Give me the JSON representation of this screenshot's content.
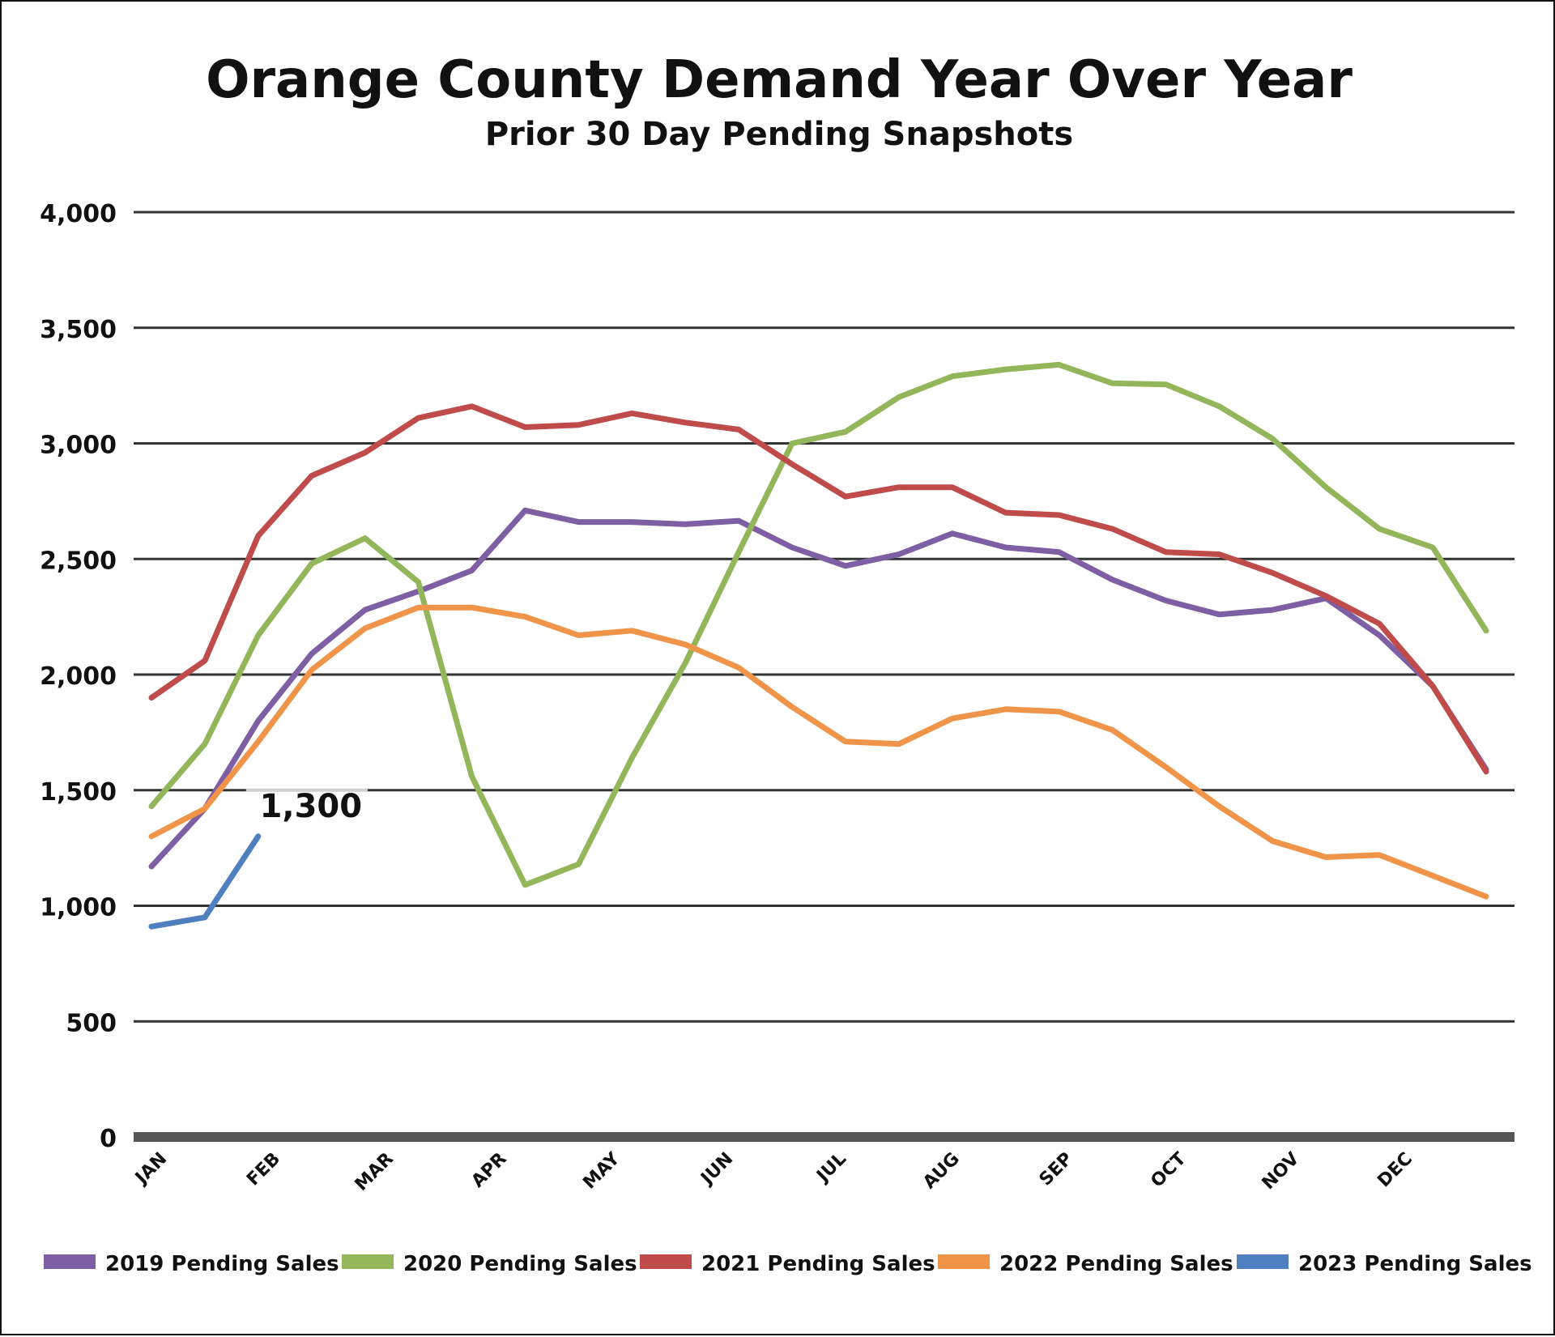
{
  "chart_data": {
    "type": "line",
    "title": "Orange County Demand Year Over Year",
    "subtitle": "Prior 30 Day Pending Snapshots",
    "xlabel": "",
    "ylabel": "",
    "ylim": [
      0,
      4000
    ],
    "yticks": [
      0,
      500,
      1000,
      1500,
      2000,
      2500,
      3000,
      3500,
      4000
    ],
    "ytick_labels": [
      "0",
      "500",
      "1,000",
      "1,500",
      "2,000",
      "2,500",
      "3,000",
      "3,500",
      "4,000"
    ],
    "month_labels": [
      "JAN",
      "FEB",
      "MAR",
      "APR",
      "MAY",
      "JUN",
      "JUL",
      "AUG",
      "SEP",
      "OCT",
      "NOV",
      "DEC"
    ],
    "points_per_year": 26,
    "grid": true,
    "legend_position": "bottom",
    "series": [
      {
        "name": "2019 Pending Sales",
        "color": "#7e5fa3",
        "values": [
          1170,
          1420,
          1800,
          2090,
          2280,
          2360,
          2450,
          2710,
          2660,
          2660,
          2650,
          2665,
          2550,
          2470,
          2520,
          2610,
          2550,
          2530,
          2410,
          2320,
          2260,
          2280,
          2330,
          2170,
          1950,
          1590
        ]
      },
      {
        "name": "2020 Pending Sales",
        "color": "#93b65a",
        "values": [
          1430,
          1700,
          2170,
          2480,
          2590,
          2400,
          1560,
          1090,
          1180,
          1640,
          2050,
          2530,
          3000,
          3050,
          3200,
          3290,
          3320,
          3340,
          3260,
          3255,
          3160,
          3020,
          2810,
          2630,
          2550,
          2190
        ]
      },
      {
        "name": "2021 Pending Sales",
        "color": "#c04b4b",
        "values": [
          1900,
          2060,
          2600,
          2860,
          2960,
          3110,
          3160,
          3070,
          3080,
          3130,
          3090,
          3060,
          2910,
          2770,
          2810,
          2810,
          2700,
          2690,
          2630,
          2530,
          2520,
          2440,
          2340,
          2220,
          1950,
          1580
        ]
      },
      {
        "name": "2022 Pending Sales",
        "color": "#f0944a",
        "values": [
          1300,
          1420,
          1710,
          2020,
          2200,
          2290,
          2290,
          2250,
          2170,
          2190,
          2130,
          2030,
          1860,
          1710,
          1700,
          1810,
          1850,
          1840,
          1760,
          1600,
          1430,
          1280,
          1210,
          1220,
          1130,
          1040
        ]
      },
      {
        "name": "2023 Pending Sales",
        "color": "#4f7fbf",
        "values": [
          910,
          950,
          1300
        ]
      }
    ],
    "annotations": [
      {
        "text": "1,300",
        "series": "2023 Pending Sales",
        "point_index": 2,
        "value": 1300
      }
    ]
  }
}
